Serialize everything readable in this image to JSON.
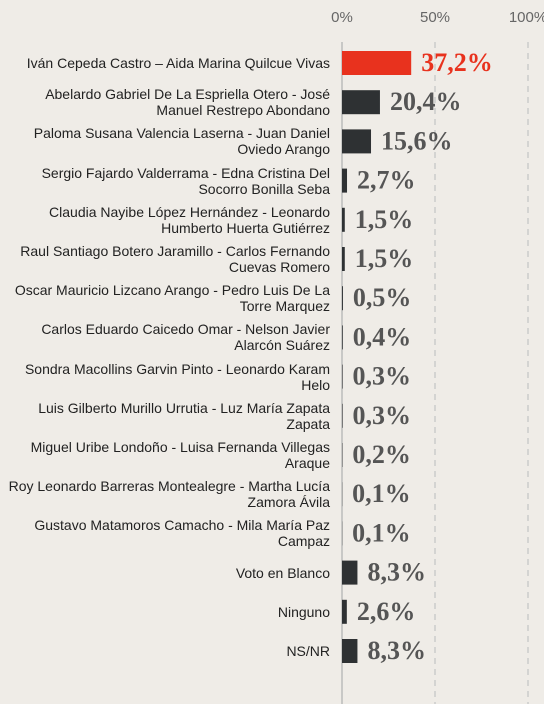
{
  "chart_data": {
    "type": "barh",
    "categories": [
      "Iván Cepeda Castro – Aida Marina Quilcue Vivas",
      "Abelardo Gabriel De La Espriella Otero - José Manuel Restrepo Abondano",
      "Paloma Susana Valencia Laserna - Juan Daniel Oviedo Arango",
      "Sergio Fajardo Valderrama - Edna Cristina Del Socorro Bonilla Seba",
      "Claudia Nayibe López Hernández - Leonardo Humberto Huerta Gutiérrez",
      "Raul Santiago Botero Jaramillo - Carlos Fernando Cuevas Romero",
      "Oscar Mauricio Lizcano Arango - Pedro Luis De La Torre Marquez",
      "Carlos Eduardo Caicedo Omar - Nelson Javier Alarcón Suárez",
      "Sondra Macollins Garvin Pinto - Leonardo Karam Helo",
      "Luis Gilberto Murillo Urrutia - Luz María Zapata Zapata",
      "Miguel Uribe Londoño - Luisa Fernanda Villegas Araque",
      "Roy Leonardo Barreras Montealegre - Martha Lucía Zamora Ávila",
      "Gustavo Matamoros Camacho - Mila María Paz Campaz",
      "Voto en Blanco",
      "Ninguno",
      "NS/NR"
    ],
    "values": [
      37.2,
      20.4,
      15.6,
      2.7,
      1.5,
      1.5,
      0.5,
      0.4,
      0.3,
      0.3,
      0.2,
      0.1,
      0.1,
      8.3,
      2.6,
      8.3
    ],
    "value_labels": [
      "37,2%",
      "20,4%",
      "15,6%",
      "2,7%",
      "1,5%",
      "1,5%",
      "0,5%",
      "0,4%",
      "0,3%",
      "0,3%",
      "0,2%",
      "0,1%",
      "0,1%",
      "8,3%",
      "2,6%",
      "8,3%"
    ],
    "colors": [
      "#e8321e",
      "#2e3133",
      "#2e3133",
      "#2e3133",
      "#2e3133",
      "#2e3133",
      "#2e3133",
      "#2e3133",
      "#2e3133",
      "#2e3133",
      "#2e3133",
      "#2e3133",
      "#2e3133",
      "#2e3133",
      "#2e3133",
      "#2e3133"
    ],
    "label_colors": [
      "#e8321e",
      "#555555",
      "#555555",
      "#555555",
      "#555555",
      "#555555",
      "#555555",
      "#555555",
      "#555555",
      "#555555",
      "#555555",
      "#555555",
      "#555555",
      "#555555",
      "#555555",
      "#555555"
    ],
    "xlim": [
      0,
      100
    ],
    "xticks": [
      {
        "value": 0,
        "label": "0%"
      },
      {
        "value": 50,
        "label": "50%"
      },
      {
        "value": 100,
        "label": "100%"
      }
    ],
    "grid": true
  }
}
